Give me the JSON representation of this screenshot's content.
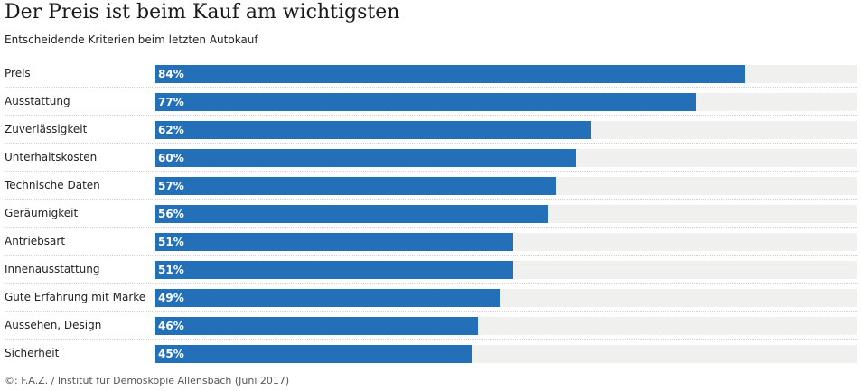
{
  "chart_data": {
    "type": "bar",
    "orientation": "horizontal",
    "title": "Der Preis ist beim Kauf am wichtigsten",
    "subtitle": "Entscheidende Kriterien beim letzten Autokauf",
    "source": "©: F.A.Z. / Institut für Demoskopie Allensbach (Juni 2017)",
    "unit": "%",
    "xlim": [
      0,
      100
    ],
    "grid": false,
    "categories": [
      "Preis",
      "Ausstattung",
      "Zuverlässigkeit",
      "Unterhaltskosten",
      "Technische Daten",
      "Geräumigkeit",
      "Antriebsart",
      "Innenausstattung",
      "Gute Erfahrung mit Marke",
      "Aussehen, Design",
      "Sicherheit"
    ],
    "values": [
      84,
      77,
      62,
      60,
      57,
      56,
      51,
      51,
      49,
      46,
      45
    ],
    "value_labels": [
      "84%",
      "77%",
      "62%",
      "60%",
      "57%",
      "56%",
      "51%",
      "51%",
      "49%",
      "46%",
      "45%"
    ],
    "colors": {
      "bar": "#2470b8",
      "track": "#f0f0ee"
    }
  }
}
